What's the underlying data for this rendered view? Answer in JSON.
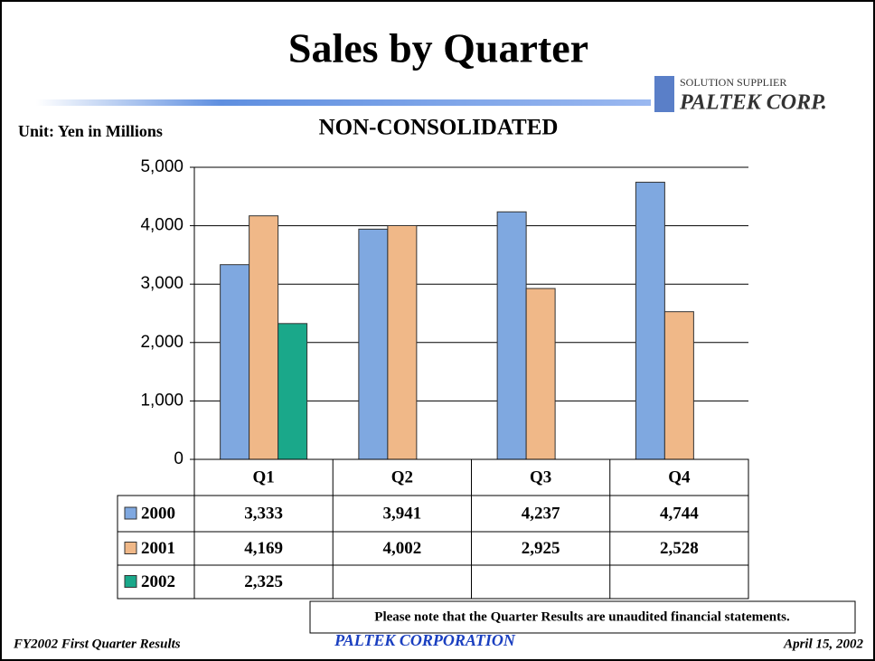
{
  "chart_data": {
    "type": "bar",
    "title": "Sales by Quarter",
    "subtitle": "NON-CONSOLIDATED",
    "unit_label": "Unit: Yen in Millions",
    "logo_tagline": "SOLUTION SUPPLIER",
    "logo_name": "PALTEK CORP.",
    "note": "Please note that the Quarter Results are unaudited financial statements.",
    "footer_left": "FY2002 First Quarter Results",
    "footer_center": "PALTEK CORPORATION",
    "footer_right": "April 15, 2002",
    "categories": [
      "Q1",
      "Q2",
      "Q3",
      "Q4"
    ],
    "series": [
      {
        "name": "2000",
        "color": "#7fa8e0",
        "values": [
          3333,
          3941,
          4237,
          4744
        ],
        "value_labels": [
          "3,333",
          "3,941",
          "4,237",
          "4,744"
        ]
      },
      {
        "name": "2001",
        "color": "#f0b888",
        "values": [
          4169,
          4002,
          2925,
          2528
        ],
        "value_labels": [
          "4,169",
          "4,002",
          "2,925",
          "2,528"
        ]
      },
      {
        "name": "2002",
        "color": "#1aa88a",
        "values": [
          2325,
          null,
          null,
          null
        ],
        "value_labels": [
          "2,325",
          null,
          null,
          null
        ]
      }
    ],
    "ylim": [
      0,
      5000
    ],
    "yticks": [
      0,
      {
        "value": 1000,
        "label": "1,000"
      },
      {
        "value": 2000,
        "label": "2,000"
      },
      {
        "value": 3000,
        "label": "3,000"
      },
      {
        "value": 4000,
        "label": "4,000"
      },
      {
        "value": 5000,
        "label": "5,000"
      }
    ],
    "grid": true
  }
}
